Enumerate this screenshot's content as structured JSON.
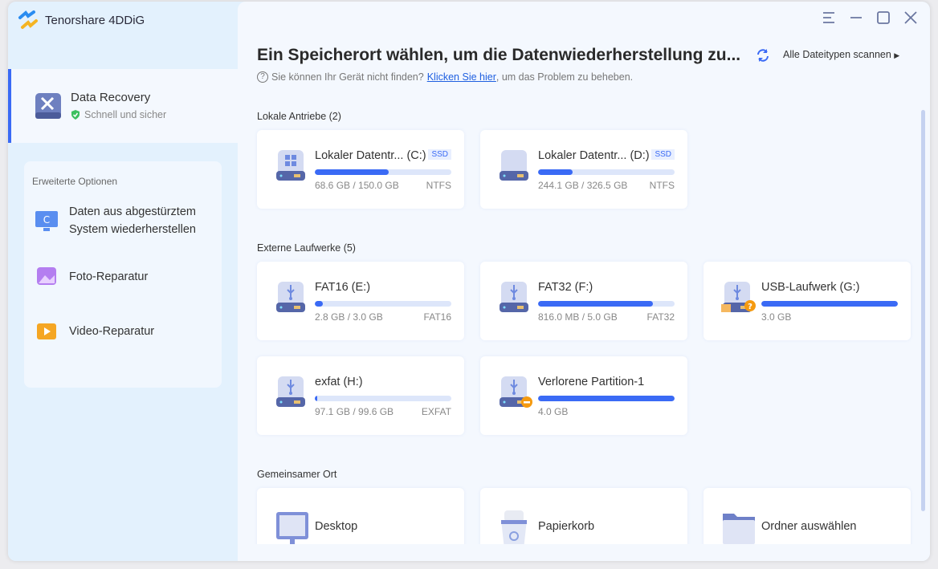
{
  "app": {
    "title": "Tenorshare 4DDiG"
  },
  "sidebar": {
    "data_recovery": {
      "title": "Data Recovery",
      "subtitle": "Schnell und sicher"
    },
    "advanced": {
      "heading": "Erweiterte Optionen",
      "items": [
        {
          "label": "Daten aus abgestürztem System wiederherstellen",
          "icon": "crashed-system-icon"
        },
        {
          "label": "Foto-Reparatur",
          "icon": "photo-repair-icon"
        },
        {
          "label": "Video-Reparatur",
          "icon": "video-repair-icon"
        }
      ]
    }
  },
  "main": {
    "title": "Ein Speicherort wählen, um die Datenwiederherstellung zu...",
    "scan_all": "Alle Dateitypen scannen",
    "help_text": "Sie können Ihr Gerät nicht finden?",
    "help_link": "Klicken Sie hier",
    "help_suffix": ", um das Problem zu beheben.",
    "sections": {
      "local": "Lokale Antriebe (2)",
      "external": "Externe Laufwerke (5)",
      "shared": "Gemeinsamer Ort"
    },
    "local_drives": [
      {
        "name": "Lokaler Datentr... (C:)",
        "badge": "SSD",
        "size": "68.6 GB / 150.0 GB",
        "fs": "NTFS",
        "fill_percent": 54
      },
      {
        "name": "Lokaler Datentr... (D:)",
        "badge": "SSD",
        "size": "244.1 GB / 326.5 GB",
        "fs": "NTFS",
        "fill_percent": 25
      }
    ],
    "external_drives": [
      {
        "name": "FAT16 (E:)",
        "size": "2.8 GB / 3.0 GB",
        "fs": "FAT16",
        "fill_percent": 6
      },
      {
        "name": "FAT32 (F:)",
        "size": "816.0 MB / 5.0 GB",
        "fs": "FAT32",
        "fill_percent": 84
      },
      {
        "name": "USB-Laufwerk (G:)",
        "size": "3.0 GB",
        "fs": "",
        "fill_percent": 100,
        "status": "locked-unknown"
      },
      {
        "name": "exfat (H:)",
        "size": "97.1 GB / 99.6 GB",
        "fs": "EXFAT",
        "fill_percent": 2
      },
      {
        "name": "Verlorene Partition-1",
        "size": "4.0 GB",
        "fs": "",
        "fill_percent": 100,
        "status": "lost"
      }
    ],
    "locations": [
      {
        "name": "Desktop"
      },
      {
        "name": "Papierkorb"
      },
      {
        "name": "Ordner auswählen"
      }
    ]
  },
  "colors": {
    "accent": "#3a6af5",
    "sidebar_bg": "#e3f1fd",
    "main_bg": "#f4f8fe"
  }
}
